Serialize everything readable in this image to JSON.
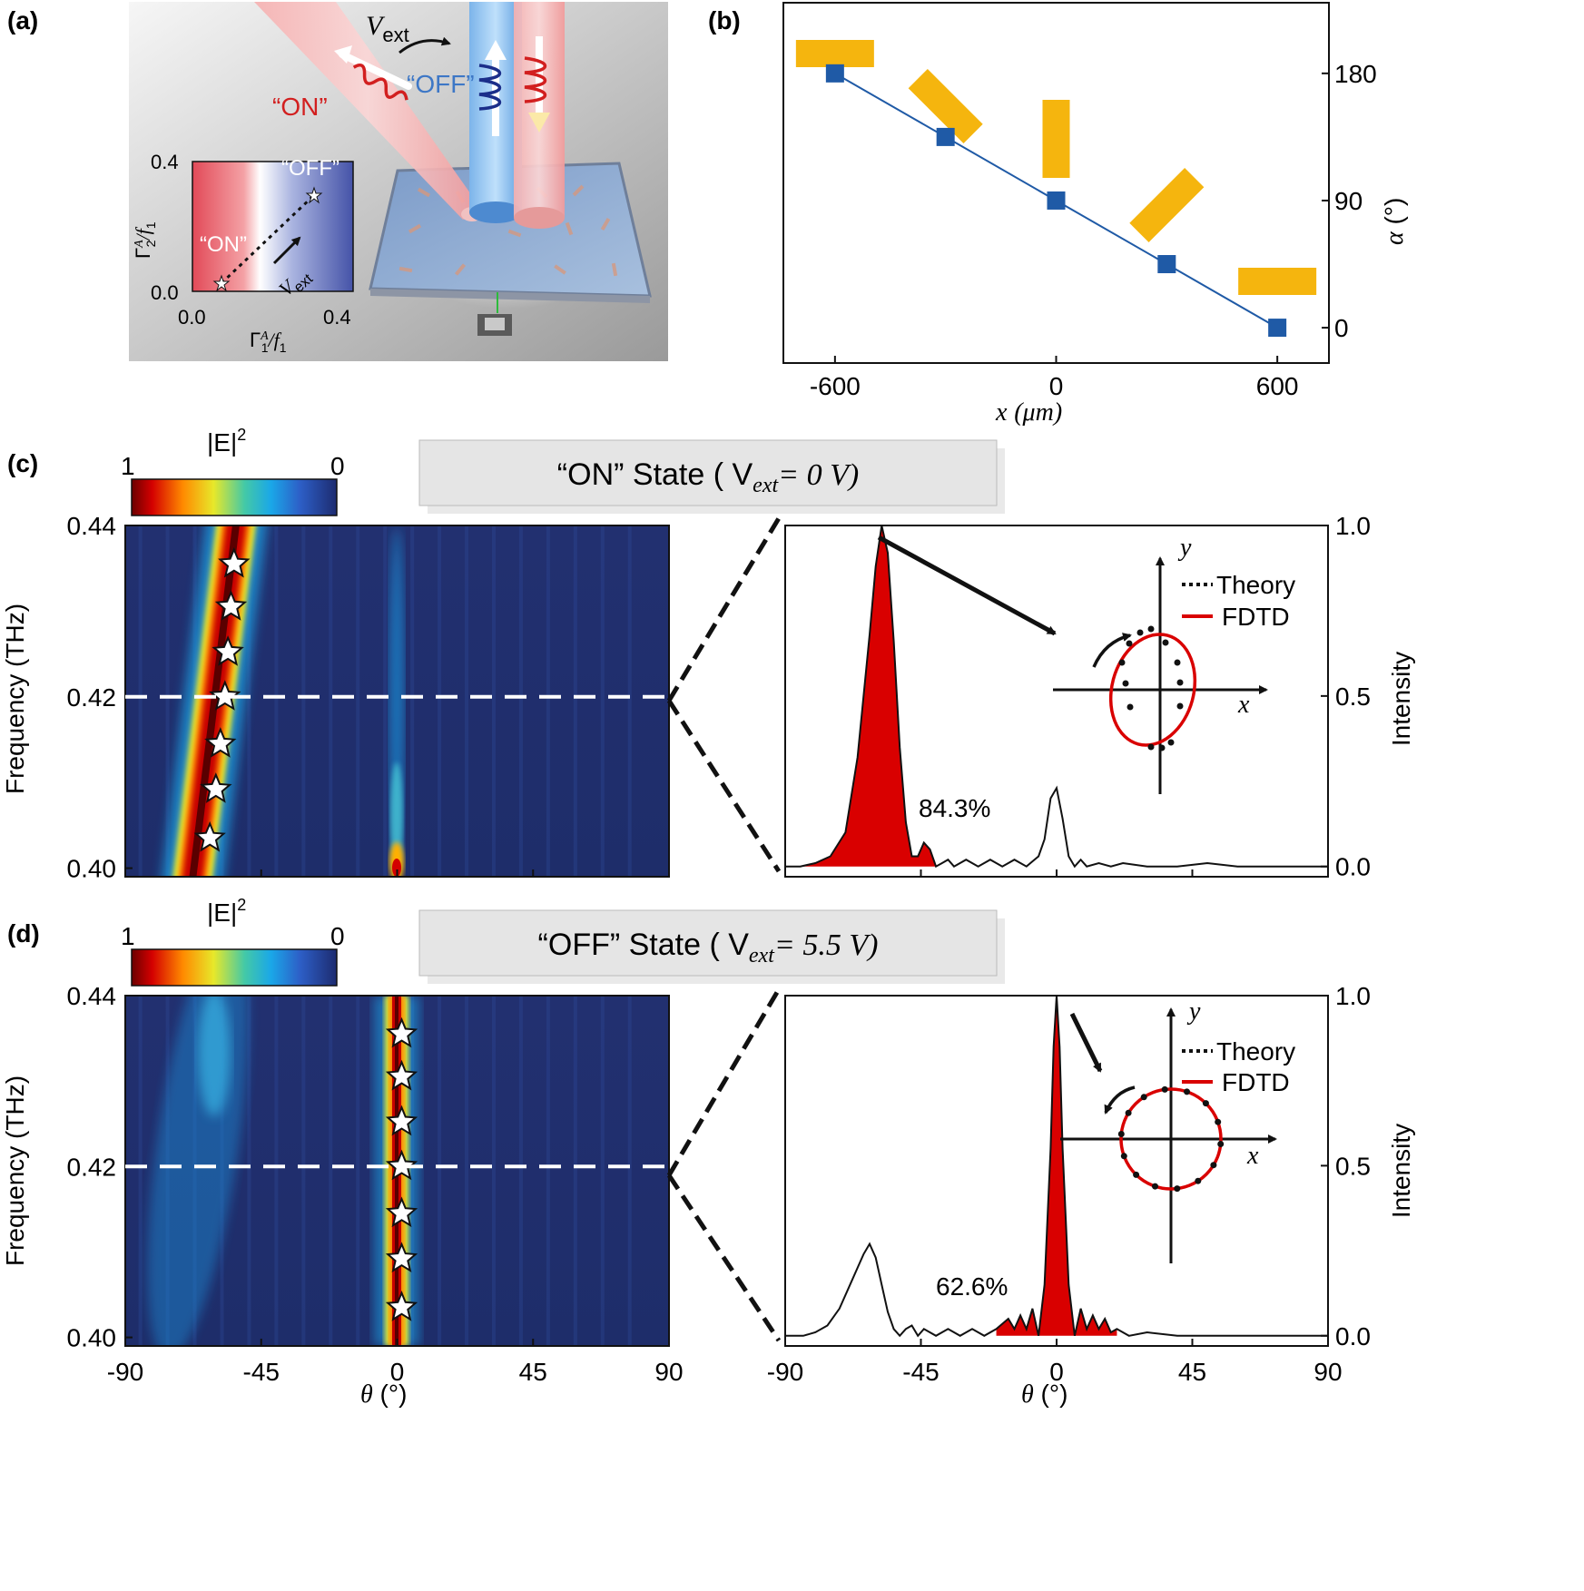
{
  "panel_labels": {
    "a": "(a)",
    "b": "(b)",
    "c": "(c)",
    "d": "(d)"
  },
  "panel_a": {
    "v_ext": "V",
    "v_ext_sub": "ext",
    "on_label": "“ON”",
    "off_label": "“OFF”",
    "inset": {
      "on_label": "“ON”",
      "off_label": "“OFF”",
      "v_label": "V",
      "v_sub": "ext",
      "x_ticks": [
        "0.0",
        "0.4"
      ],
      "y_ticks": [
        "0.0",
        "0.4"
      ],
      "xlabel_main": "Γ",
      "xlabel_tail": "/f",
      "ylabel_main": "Γ",
      "ylabel_tail": "/f",
      "sup": "A",
      "sub1": "1",
      "sub2": "2"
    }
  },
  "chart_data": [
    {
      "panel": "b",
      "type": "line",
      "x": [
        -600,
        -300,
        0,
        300,
        600
      ],
      "y": [
        180,
        135,
        90,
        45,
        0
      ],
      "xlabel_var": "x",
      "xlabel_unit": "(μm)",
      "ylabel_var": "α",
      "ylabel_unit": "(°)",
      "x_ticks": [
        "-600",
        "0",
        "600"
      ],
      "y_ticks": [
        "180",
        "90",
        "0"
      ],
      "xlim": [
        -740,
        740
      ],
      "ylim": [
        -25,
        230
      ],
      "y_axis_side": "right",
      "marker": "square",
      "line_color": "#1f5aa6",
      "marker_color": "#1f5aa6",
      "bar_color": "#f5b50e",
      "bar_orientation_deg": [
        0,
        45,
        90,
        135,
        180
      ]
    },
    {
      "panel": "c-left",
      "type": "heatmap",
      "title": "“ON” State ( V",
      "title_sub": "ext",
      "title_tail": "= 0 V)",
      "colorbar": {
        "label": "|E|",
        "sup": "2",
        "max_label": "1",
        "min_label": "0"
      },
      "ylabel": "Frequency (THz)",
      "y_ticks": [
        "0.44",
        "0.42",
        "0.40"
      ],
      "ylim": [
        0.399,
        0.44
      ],
      "xlim": [
        -90,
        90
      ],
      "dashed_frequency": 0.42,
      "peak_path_theta": [
        -68,
        -53
      ],
      "star_points": [
        {
          "theta": -54,
          "f": 0.4355
        },
        {
          "theta": -55,
          "f": 0.4305
        },
        {
          "theta": -56,
          "f": 0.4252
        },
        {
          "theta": -57,
          "f": 0.42
        },
        {
          "theta": -58.5,
          "f": 0.4145
        },
        {
          "theta": -60,
          "f": 0.4092
        },
        {
          "theta": -62,
          "f": 0.4035
        }
      ]
    },
    {
      "panel": "c-right",
      "type": "area",
      "ylabel": "Intensity",
      "y_ticks": [
        "1.0",
        "0.5",
        "0.0"
      ],
      "ylim": [
        -0.03,
        1.0
      ],
      "xlim": [
        -90,
        90
      ],
      "annotation": "84.3%",
      "filled_range": [
        -90,
        -40
      ],
      "legend": [
        "Theory",
        "FDTD"
      ],
      "axis_x": "x",
      "axis_y": "y",
      "x": [
        -90,
        -85,
        -80,
        -75,
        -70,
        -66,
        -62,
        -60,
        -58,
        -56,
        -54,
        -52,
        -50,
        -48,
        -46,
        -44,
        -42,
        -40,
        -38,
        -36,
        -34,
        -30,
        -26,
        -22,
        -18,
        -14,
        -10,
        -6,
        -4,
        -2,
        0,
        2,
        4,
        6,
        8,
        10,
        14,
        18,
        22,
        30,
        40,
        50,
        60,
        70,
        80,
        90
      ],
      "values": [
        0.0,
        0.0,
        0.01,
        0.03,
        0.1,
        0.32,
        0.68,
        0.88,
        1.0,
        0.92,
        0.66,
        0.35,
        0.13,
        0.03,
        0.03,
        0.07,
        0.05,
        0.0,
        0.01,
        0.02,
        0.0,
        0.02,
        0.0,
        0.02,
        0.0,
        0.02,
        0.0,
        0.03,
        0.08,
        0.2,
        0.23,
        0.14,
        0.03,
        0.0,
        0.02,
        0.0,
        0.01,
        0.0,
        0.01,
        0.0,
        0.0,
        0.01,
        0.0,
        0.0,
        0.0,
        0.0
      ]
    },
    {
      "panel": "d-left",
      "type": "heatmap",
      "title": "“OFF” State ( V",
      "title_sub": "ext",
      "title_tail": "= 5.5 V)",
      "colorbar": {
        "label": "|E|",
        "sup": "2",
        "max_label": "1",
        "min_label": "0"
      },
      "xlabel_var": "θ",
      "xlabel_unit": "(°)",
      "ylabel": "Frequency (THz)",
      "x_ticks": [
        "-90",
        "-45",
        "0",
        "45",
        "90"
      ],
      "y_ticks": [
        "0.44",
        "0.42",
        "0.40"
      ],
      "ylim": [
        0.399,
        0.44
      ],
      "xlim": [
        -90,
        90
      ],
      "dashed_frequency": 0.42,
      "star_points": [
        {
          "theta": 1.5,
          "f": 0.4355
        },
        {
          "theta": 1.5,
          "f": 0.4305
        },
        {
          "theta": 1.5,
          "f": 0.4252
        },
        {
          "theta": 1.5,
          "f": 0.42
        },
        {
          "theta": 1.5,
          "f": 0.4145
        },
        {
          "theta": 1.5,
          "f": 0.4092
        },
        {
          "theta": 1.5,
          "f": 0.4035
        }
      ]
    },
    {
      "panel": "d-right",
      "type": "area",
      "xlabel_var": "θ",
      "xlabel_unit": "(°)",
      "ylabel": "Intensity",
      "x_ticks": [
        "-90",
        "-45",
        "0",
        "45",
        "90"
      ],
      "y_ticks": [
        "1.0",
        "0.5",
        "0.0"
      ],
      "ylim": [
        -0.03,
        1.0
      ],
      "xlim": [
        -90,
        90
      ],
      "annotation": "62.6%",
      "filled_range": [
        -20,
        20
      ],
      "legend": [
        "Theory",
        "FDTD"
      ],
      "axis_x": "x",
      "axis_y": "y",
      "x": [
        -90,
        -84,
        -80,
        -76,
        -72,
        -68,
        -64,
        -62,
        -60,
        -58,
        -56,
        -54,
        -52,
        -50,
        -48,
        -46,
        -44,
        -40,
        -36,
        -32,
        -28,
        -24,
        -20,
        -16,
        -14,
        -12,
        -10,
        -8,
        -6,
        -4,
        -2,
        -1,
        0,
        1,
        2,
        4,
        6,
        8,
        10,
        12,
        14,
        16,
        18,
        20,
        24,
        30,
        40,
        50,
        60,
        70,
        80,
        90
      ],
      "values": [
        0.0,
        0.0,
        0.01,
        0.03,
        0.08,
        0.16,
        0.24,
        0.27,
        0.23,
        0.15,
        0.07,
        0.02,
        0.0,
        0.02,
        0.03,
        0.0,
        0.02,
        0.0,
        0.02,
        0.0,
        0.02,
        0.0,
        0.02,
        0.05,
        0.02,
        0.06,
        0.02,
        0.08,
        0.0,
        0.15,
        0.55,
        0.85,
        1.0,
        0.85,
        0.55,
        0.15,
        0.0,
        0.08,
        0.02,
        0.06,
        0.02,
        0.05,
        0.01,
        0.02,
        0.0,
        0.01,
        0.0,
        0.0,
        0.0,
        0.0,
        0.0,
        0.0
      ]
    }
  ]
}
